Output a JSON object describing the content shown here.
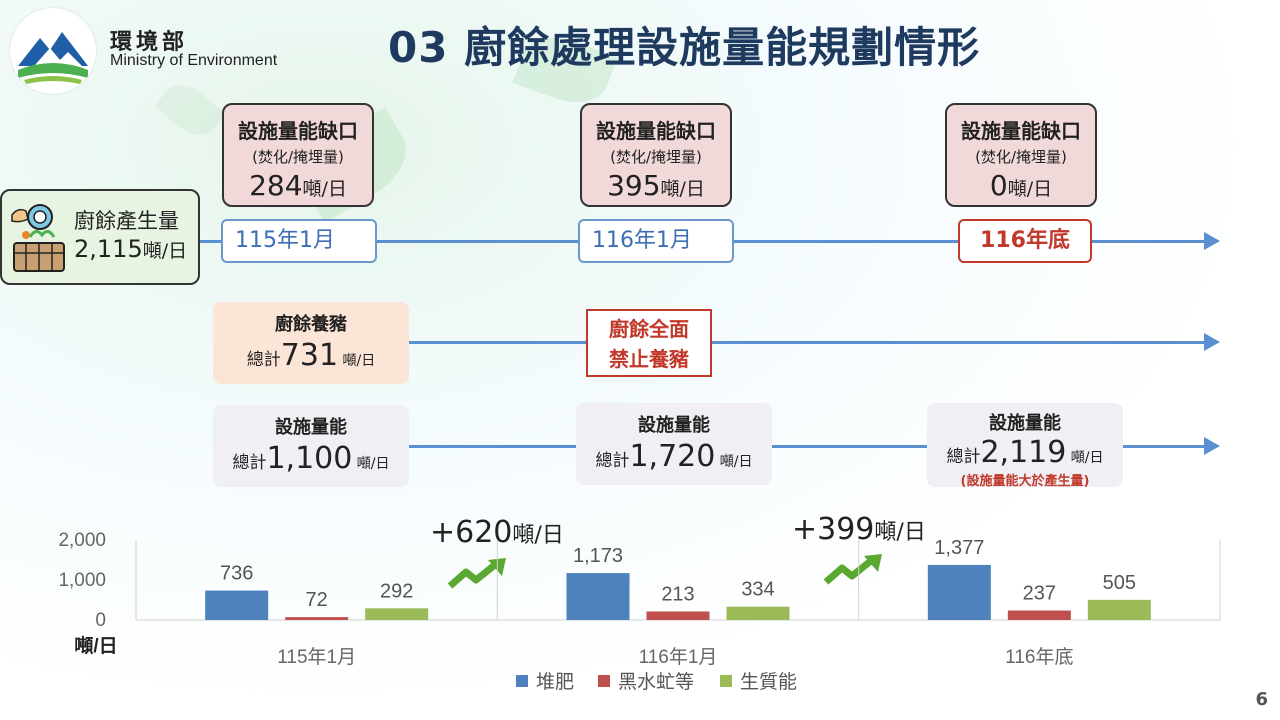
{
  "header": {
    "ministry_cn": "環境部",
    "ministry_en": "Ministry of Environment",
    "title": "03 廚餘處理設施量能規劃情形"
  },
  "generation": {
    "label": "廚餘產生量",
    "value": "2,115",
    "unit": "噸/日"
  },
  "gaps": [
    {
      "title": "設施量能缺口",
      "subtitle": "(焚化/掩埋量)",
      "value": "284",
      "unit": "噸/日"
    },
    {
      "title": "設施量能缺口",
      "subtitle": "(焚化/掩埋量)",
      "value": "395",
      "unit": "噸/日"
    },
    {
      "title": "設施量能缺口",
      "subtitle": "(焚化/掩埋量)",
      "value": "0",
      "unit": "噸/日"
    }
  ],
  "dates": [
    "115年1月",
    "116年1月",
    "116年底"
  ],
  "pig": {
    "title": "廚餘養豬",
    "prefix": "總計",
    "value": "731",
    "unit": " 噸/日"
  },
  "ban": {
    "line1": "廚餘全面",
    "line2": "禁止養豬"
  },
  "capacity": [
    {
      "title": "設施量能",
      "prefix": "總計",
      "value": "1,100",
      "unit": " 噸/日",
      "note": ""
    },
    {
      "title": "設施量能",
      "prefix": "總計",
      "value": "1,720",
      "unit": " 噸/日",
      "note": ""
    },
    {
      "title": "設施量能",
      "prefix": "總計",
      "value": "2,119",
      "unit": " 噸/日",
      "note": "(設施量能大於產生量)"
    }
  ],
  "increases": [
    {
      "value": "+620",
      "unit": "噸/日"
    },
    {
      "value": "+399",
      "unit": "噸/日"
    }
  ],
  "colors": {
    "compost": "#4f81bd",
    "bsf": "#c0504d",
    "bio": "#9bbb59",
    "accent_blue": "#5a8fd0",
    "title_navy": "#1f3a5f"
  },
  "icons": [
    "ministry-logo-icon",
    "food-waste-basket-icon",
    "up-trend-arrow-icon"
  ],
  "page_number": "6",
  "chart_data": {
    "type": "bar",
    "categories": [
      "115年1月",
      "116年1月",
      "116年底"
    ],
    "series": [
      {
        "name": "堆肥",
        "values": [
          736,
          1173,
          1377
        ]
      },
      {
        "name": "黑水虻等",
        "values": [
          72,
          213,
          237
        ]
      },
      {
        "name": "生質能",
        "values": [
          292,
          334,
          505
        ]
      }
    ],
    "data_labels": [
      [
        "736",
        "72",
        "292"
      ],
      [
        "1,173",
        "213",
        "334"
      ],
      [
        "1,377",
        "237",
        "505"
      ]
    ],
    "yticks": [
      "2,000",
      "1,000",
      "0"
    ],
    "ylim": [
      0,
      2000
    ],
    "ylabel": "噸/日",
    "legend": "bottom",
    "grid": false
  }
}
